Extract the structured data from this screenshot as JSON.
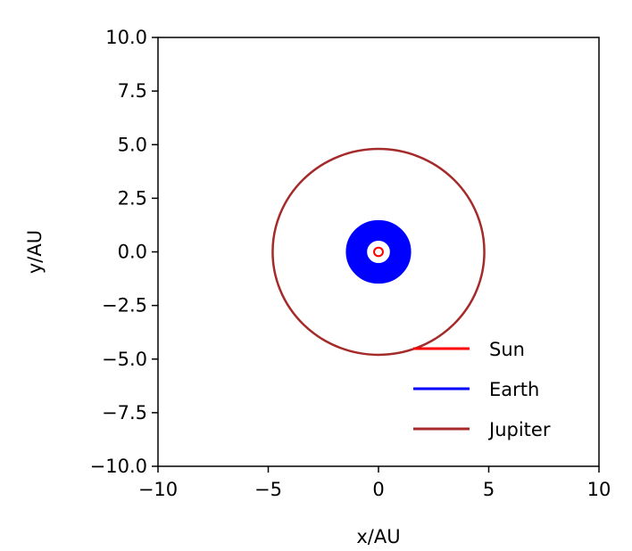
{
  "chart_data": {
    "type": "line",
    "xlabel": "x/AU",
    "ylabel": "y/AU",
    "xlim": [
      -10,
      10
    ],
    "ylim": [
      -10,
      10
    ],
    "xticks": [
      -10,
      -5,
      0,
      5,
      10
    ],
    "yticks": [
      10,
      7.5,
      5,
      2.5,
      0,
      -2.5,
      -5,
      -7.5,
      -10
    ],
    "xtick_labels": [
      "−10",
      "−5",
      "0",
      "5",
      "10"
    ],
    "ytick_labels": [
      "10.0",
      "7.5",
      "5.0",
      "2.5",
      "0.0",
      "−2.5",
      "−5.0",
      "−7.5",
      "−10.0"
    ],
    "grid": false,
    "legend_position": "lower-right",
    "series": [
      {
        "name": "Sun",
        "color": "#ff0000",
        "shape": "orbit",
        "center": [
          0,
          0
        ],
        "radius": 0.2
      },
      {
        "name": "Earth",
        "color": "#0000ff",
        "shape": "orbit-band",
        "center": [
          0,
          0
        ],
        "radius_inner": 0.55,
        "radius_outer": 1.45
      },
      {
        "name": "Jupiter",
        "color": "#a52a2a",
        "shape": "orbit",
        "center": [
          0,
          0
        ],
        "radius": 4.8
      }
    ]
  }
}
